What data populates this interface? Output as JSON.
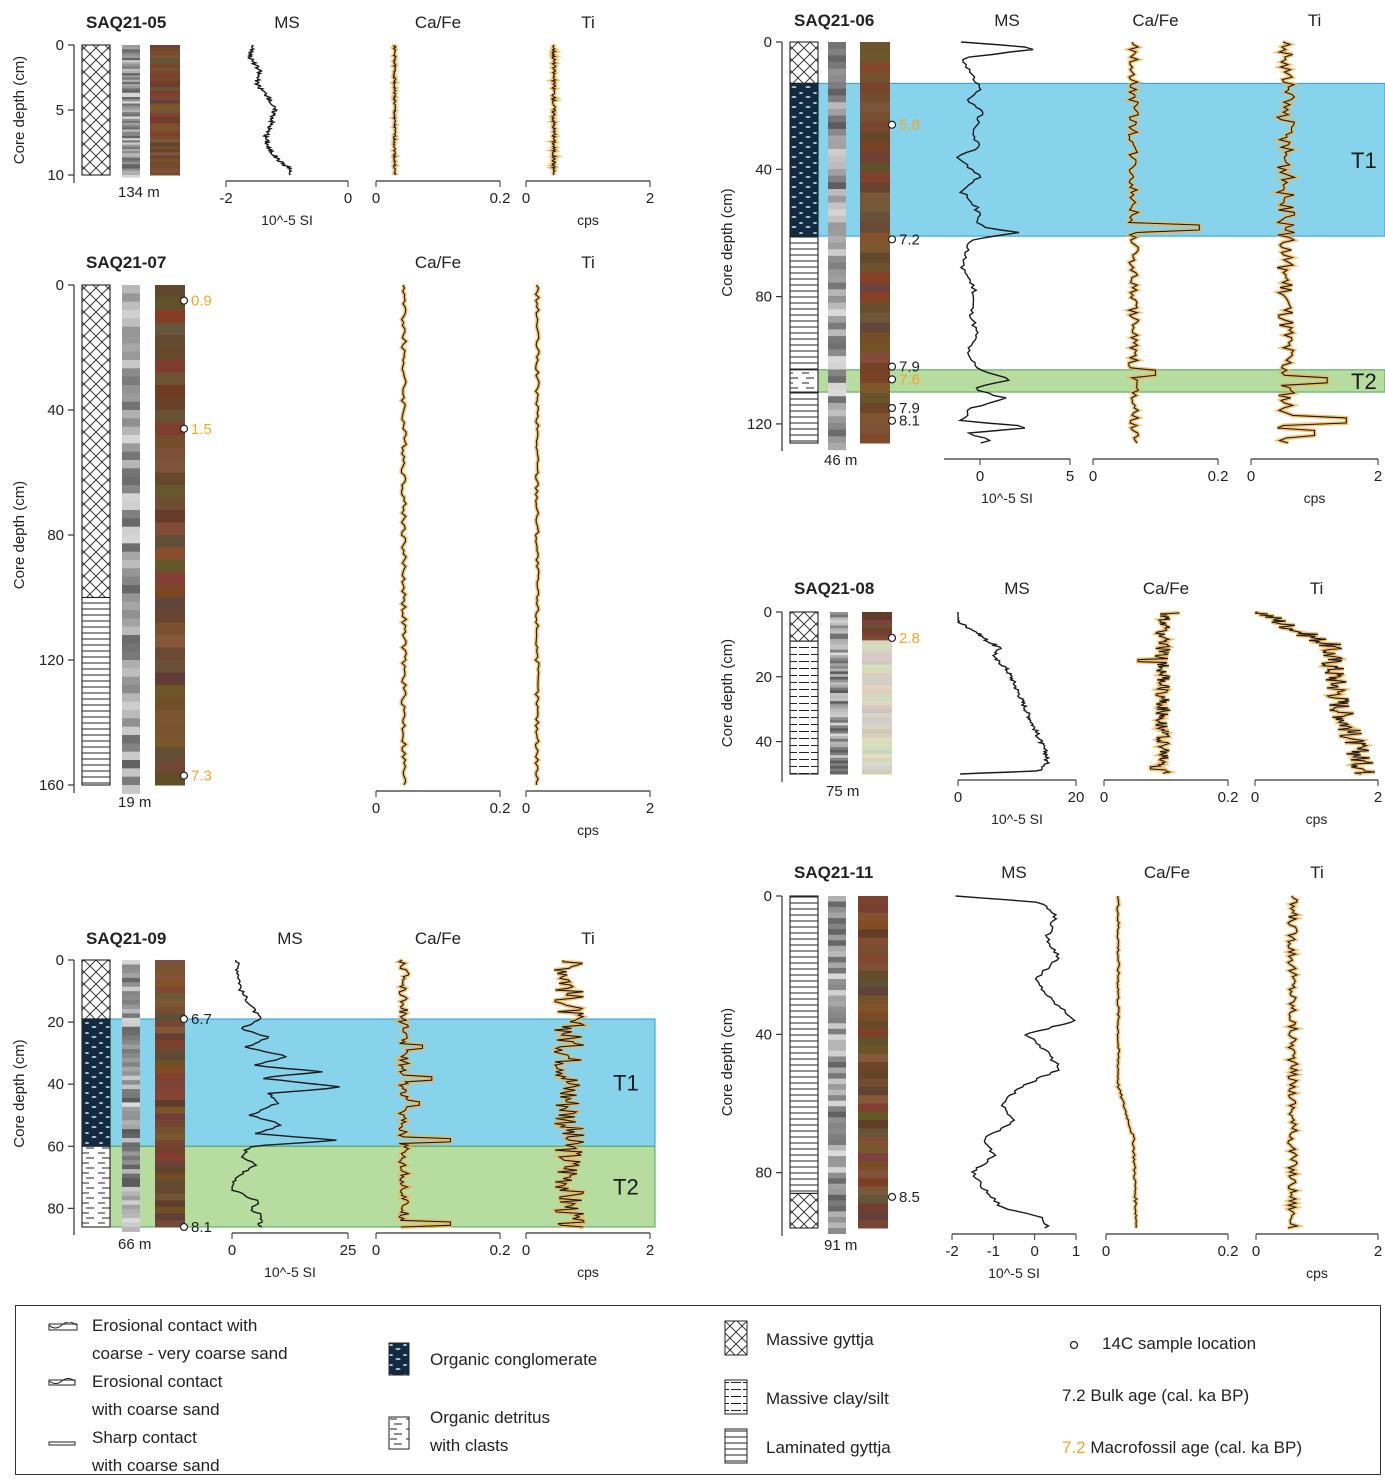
{
  "colors": {
    "t1": "#87d3ec",
    "t1_edge": "#2a9fd6",
    "t2": "#b6dca0",
    "t2_edge": "#4aa85a",
    "curve": "#1a1a1a",
    "halo": "#f5b44a",
    "macro_age": "#f5a623",
    "bulk_age": "#222222"
  },
  "depth_label": "Core depth (cm)",
  "chart_data": [
    {
      "type": "line",
      "core": "SAQ21-05",
      "elevation": "134 m",
      "depth_range": [
        0,
        10
      ],
      "depth_ticks": [
        0,
        5,
        10
      ],
      "headers": {
        "ms": "MS",
        "cafe": "Ca/Fe",
        "ti": "Ti"
      },
      "units": {
        "ms": "10^-5 SI",
        "ti": "cps"
      },
      "ms": {
        "range": [
          -2,
          0
        ],
        "ticks": [
          "-2",
          "0"
        ],
        "profile": [
          [
            0,
            -1.55
          ],
          [
            1,
            -1.6
          ],
          [
            2,
            -1.45
          ],
          [
            3,
            -1.5
          ],
          [
            4,
            -1.3
          ],
          [
            5,
            -1.2
          ],
          [
            6,
            -1.25
          ],
          [
            7,
            -1.35
          ],
          [
            8,
            -1.3
          ],
          [
            9,
            -1.1
          ],
          [
            9.5,
            -0.95
          ]
        ]
      },
      "cafe": {
        "range": [
          0,
          0.2
        ],
        "ticks": [
          "0",
          "0.2"
        ],
        "level": 0.03,
        "noise": 0.002
      },
      "ti": {
        "range": [
          0,
          2
        ],
        "ticks": [
          "0",
          "2"
        ],
        "level": 0.45,
        "noise": 0.03
      },
      "units_legend": [],
      "litho": [
        "massive_gyttja"
      ],
      "ages": [],
      "events": []
    },
    {
      "type": "line",
      "core": "SAQ21-07",
      "elevation": "19 m",
      "depth_range": [
        0,
        160
      ],
      "depth_ticks": [
        0,
        40,
        80,
        120,
        160
      ],
      "headers": {
        "ms": "",
        "cafe": "Ca/Fe",
        "ti": "Ti"
      },
      "units": {
        "ms": "",
        "ti": "cps"
      },
      "ms": null,
      "cafe": {
        "range": [
          0,
          0.2
        ],
        "ticks": [
          "0",
          "0.2"
        ],
        "level": 0.045,
        "noise": 0.004
      },
      "ti": {
        "range": [
          0,
          2
        ],
        "ticks": [
          "0",
          "2"
        ],
        "level": 0.18,
        "noise": 0.03
      },
      "litho_units": [
        {
          "type": "massive_gyttja",
          "top": 0,
          "bottom": 100
        },
        {
          "type": "laminated_gyttja",
          "top": 100,
          "bottom": 160
        }
      ],
      "ages": [
        {
          "depth": 5,
          "label": "0.9",
          "kind": "macro"
        },
        {
          "depth": 46,
          "label": "1.5",
          "kind": "macro"
        },
        {
          "depth": 157,
          "label": "7.3",
          "kind": "macro"
        }
      ],
      "events": []
    },
    {
      "type": "line",
      "core": "SAQ21-09",
      "elevation": "66 m",
      "depth_range": [
        0,
        86
      ],
      "depth_ticks": [
        0,
        20,
        40,
        60,
        80
      ],
      "headers": {
        "ms": "MS",
        "cafe": "Ca/Fe",
        "ti": "Ti"
      },
      "units": {
        "ms": "10^-5 SI",
        "ti": "cps"
      },
      "ms": {
        "range": [
          0,
          25
        ],
        "ticks": [
          "0",
          "25"
        ],
        "profile": [
          [
            0,
            1
          ],
          [
            10,
            2
          ],
          [
            19,
            6
          ],
          [
            22,
            2
          ],
          [
            25,
            8
          ],
          [
            28,
            3
          ],
          [
            31,
            12
          ],
          [
            34,
            5
          ],
          [
            36,
            20
          ],
          [
            38,
            6
          ],
          [
            41,
            24
          ],
          [
            43,
            8
          ],
          [
            46,
            10
          ],
          [
            50,
            4
          ],
          [
            53,
            11
          ],
          [
            56,
            5
          ],
          [
            58,
            23
          ],
          [
            60,
            4
          ],
          [
            63,
            2
          ],
          [
            66,
            5
          ],
          [
            70,
            1
          ],
          [
            74,
            0
          ],
          [
            78,
            6
          ],
          [
            80,
            4
          ],
          [
            82,
            6
          ]
        ]
      },
      "cafe": {
        "range": [
          0,
          0.2
        ],
        "ticks": [
          "0",
          "0.2"
        ],
        "level": 0.045,
        "noise": 0.008,
        "bumps": [
          [
            28,
            0.075
          ],
          [
            38,
            0.09
          ],
          [
            46,
            0.07
          ],
          [
            58,
            0.12
          ],
          [
            85,
            0.12
          ]
        ]
      },
      "ti": {
        "range": [
          0,
          2
        ],
        "ticks": [
          "0",
          "2"
        ],
        "level": 0.7,
        "noise": 0.25
      },
      "litho_units": [
        {
          "type": "massive_gyttja",
          "top": 0,
          "bottom": 19
        },
        {
          "type": "organic_conglomerate",
          "top": 19,
          "bottom": 60
        },
        {
          "type": "organic_detritus",
          "top": 60,
          "bottom": 86
        }
      ],
      "ages": [
        {
          "depth": 19,
          "label": "6.7",
          "kind": "bulk"
        },
        {
          "depth": 86,
          "label": "8.1",
          "kind": "bulk"
        }
      ],
      "events": [
        {
          "name": "T1",
          "top": 19,
          "bottom": 60
        },
        {
          "name": "T2",
          "top": 60,
          "bottom": 86
        }
      ]
    },
    {
      "type": "line",
      "core": "SAQ21-06",
      "elevation": "46 m",
      "depth_range": [
        0,
        126
      ],
      "depth_ticks": [
        0,
        40,
        80,
        120
      ],
      "headers": {
        "ms": "MS",
        "cafe": "Ca/Fe",
        "ti": "Ti"
      },
      "units": {
        "ms": "10^-5 SI",
        "ti": "cps"
      },
      "ms": {
        "range": [
          -2,
          5
        ],
        "ticks": [
          "0",
          "5"
        ],
        "tick_values": [
          0,
          5
        ],
        "profile": [
          [
            0,
            -1
          ],
          [
            2,
            3.5
          ],
          [
            5,
            -1
          ],
          [
            10,
            -0.5
          ],
          [
            15,
            0
          ],
          [
            18,
            -0.8
          ],
          [
            22,
            0.2
          ],
          [
            28,
            -0.5
          ],
          [
            33,
            0
          ],
          [
            36,
            -1.3
          ],
          [
            42,
            0
          ],
          [
            47,
            -1
          ],
          [
            52,
            -0.2
          ],
          [
            58,
            0
          ],
          [
            60,
            2.2
          ],
          [
            62,
            -0.5
          ],
          [
            70,
            -1
          ],
          [
            78,
            -0.3
          ],
          [
            85,
            -0.5
          ],
          [
            92,
            -0.2
          ],
          [
            98,
            -0.8
          ],
          [
            103,
            0
          ],
          [
            106,
            1.7
          ],
          [
            109,
            -0.5
          ],
          [
            112,
            1.5
          ],
          [
            115,
            -0.5
          ],
          [
            119,
            -1
          ],
          [
            121,
            3.2
          ],
          [
            123,
            -1
          ],
          [
            125,
            0.8
          ],
          [
            126,
            0
          ]
        ]
      },
      "cafe": {
        "range": [
          0,
          0.2
        ],
        "ticks": [
          "0",
          "0.2"
        ],
        "level": 0.065,
        "noise": 0.008,
        "bumps": [
          [
            58,
            0.17
          ],
          [
            104,
            0.1
          ],
          [
            108,
            0.07
          ]
        ]
      },
      "ti": {
        "range": [
          0,
          2
        ],
        "ticks": [
          "0",
          "2"
        ],
        "level": 0.55,
        "noise": 0.14,
        "bumps": [
          [
            106,
            1.2
          ],
          [
            119,
            1.5
          ],
          [
            123,
            1.0
          ]
        ]
      },
      "litho_units": [
        {
          "type": "massive_gyttja",
          "top": 0,
          "bottom": 13
        },
        {
          "type": "organic_conglomerate",
          "top": 13,
          "bottom": 61
        },
        {
          "type": "laminated_gyttja",
          "top": 61,
          "bottom": 103
        },
        {
          "type": "organic_detritus",
          "top": 103,
          "bottom": 110
        },
        {
          "type": "laminated_gyttja",
          "top": 110,
          "bottom": 126
        }
      ],
      "ages": [
        {
          "depth": 26,
          "label": "5.8",
          "kind": "macro"
        },
        {
          "depth": 62,
          "label": "7.2",
          "kind": "bulk"
        },
        {
          "depth": 102,
          "label": "7.9",
          "kind": "bulk"
        },
        {
          "depth": 106,
          "label": "7.6",
          "kind": "macro"
        },
        {
          "depth": 115,
          "label": "7.9",
          "kind": "bulk"
        },
        {
          "depth": 119,
          "label": "8.1",
          "kind": "bulk"
        }
      ],
      "events": [
        {
          "name": "T1",
          "top": 13,
          "bottom": 61
        },
        {
          "name": "T2",
          "top": 103,
          "bottom": 110
        }
      ]
    },
    {
      "type": "line",
      "core": "SAQ21-08",
      "elevation": "75 m",
      "depth_range": [
        0,
        50
      ],
      "depth_ticks": [
        0,
        20,
        40
      ],
      "headers": {
        "ms": "MS",
        "cafe": "Ca/Fe",
        "ti": "Ti"
      },
      "units": {
        "ms": "10^-5 SI",
        "ti": "cps"
      },
      "ms": {
        "range": [
          0,
          20
        ],
        "ticks": [
          "0",
          "20"
        ],
        "profile": [
          [
            0,
            -0.5
          ],
          [
            3,
            0
          ],
          [
            6,
            3
          ],
          [
            9,
            5
          ],
          [
            11,
            7
          ],
          [
            14,
            6
          ],
          [
            17,
            8
          ],
          [
            20,
            9
          ],
          [
            24,
            10
          ],
          [
            28,
            11
          ],
          [
            32,
            12
          ],
          [
            36,
            13
          ],
          [
            40,
            14
          ],
          [
            44,
            15
          ],
          [
            47,
            15
          ],
          [
            49,
            14
          ],
          [
            50,
            0.5
          ]
        ]
      },
      "cafe": {
        "range": [
          0,
          0.2
        ],
        "ticks": [
          "0",
          "0.2"
        ],
        "level": 0.095,
        "noise": 0.012,
        "bumps": [
          [
            15,
            0.055
          ],
          [
            0,
            0.12
          ],
          [
            48,
            0.075
          ]
        ]
      },
      "ti": {
        "range": [
          0,
          2
        ],
        "ticks": [
          "0",
          "2"
        ],
        "level": 1.3,
        "noise": 0.2,
        "trend": [
          [
            0,
            0.1
          ],
          [
            5,
            0.6
          ],
          [
            10,
            1.2
          ],
          [
            30,
            1.4
          ],
          [
            45,
            1.7
          ],
          [
            50,
            1.8
          ]
        ]
      },
      "litho_units": [
        {
          "type": "massive_gyttja",
          "top": 0,
          "bottom": 9
        },
        {
          "type": "massive_clay_silt",
          "top": 9,
          "bottom": 50
        }
      ],
      "ages": [
        {
          "depth": 8,
          "label": "2.8",
          "kind": "macro"
        }
      ],
      "events": []
    },
    {
      "type": "line",
      "core": "SAQ21-11",
      "elevation": "91 m",
      "depth_range": [
        0,
        96
      ],
      "depth_ticks": [
        0,
        40,
        80
      ],
      "headers": {
        "ms": "MS",
        "cafe": "Ca/Fe",
        "ti": "Ti"
      },
      "units": {
        "ms": "10^-5 SI",
        "ti": "cps"
      },
      "ms": {
        "range": [
          -2,
          1
        ],
        "ticks": [
          "-2",
          "-1",
          "0",
          "1"
        ],
        "profile": [
          [
            0,
            -1.9
          ],
          [
            2,
            0.2
          ],
          [
            6,
            0.5
          ],
          [
            12,
            0.3
          ],
          [
            18,
            0.6
          ],
          [
            24,
            0
          ],
          [
            30,
            0.4
          ],
          [
            36,
            1
          ],
          [
            40,
            -0.2
          ],
          [
            45,
            0.3
          ],
          [
            50,
            0.6
          ],
          [
            55,
            -0.3
          ],
          [
            60,
            -0.8
          ],
          [
            65,
            -0.5
          ],
          [
            70,
            -1.2
          ],
          [
            75,
            -1
          ],
          [
            80,
            -1.5
          ],
          [
            85,
            -1.2
          ],
          [
            90,
            -0.8
          ],
          [
            93,
            0.2
          ],
          [
            96,
            0.3
          ]
        ]
      },
      "cafe": {
        "range": [
          0,
          0.2
        ],
        "ticks": [
          "0",
          "0.2"
        ],
        "level": 0.02,
        "noise": 0.002,
        "trend": [
          [
            0,
            0.02
          ],
          [
            55,
            0.02
          ],
          [
            70,
            0.045
          ],
          [
            96,
            0.05
          ]
        ]
      },
      "ti": {
        "range": [
          0,
          2
        ],
        "ticks": [
          "0",
          "2"
        ],
        "level": 0.6,
        "noise": 0.08
      },
      "litho_units": [
        {
          "type": "laminated_gyttja",
          "top": 0,
          "bottom": 86
        },
        {
          "type": "massive_gyttja",
          "top": 86,
          "bottom": 96
        }
      ],
      "ages": [
        {
          "depth": 87,
          "label": "8.5",
          "kind": "bulk"
        }
      ],
      "events": []
    }
  ],
  "legend": {
    "erosional_coarse": [
      "Erosional contact with",
      "coarse - very coarse sand"
    ],
    "erosional_sand": [
      "Erosional contact",
      "with coarse sand"
    ],
    "sharp": [
      "Sharp contact",
      "with coarse sand"
    ],
    "conglomerate": "Organic conglomerate",
    "detritus": [
      "Organic detritus",
      "with clasts"
    ],
    "massive_gyttja": "Massive gyttja",
    "massive_clay": "Massive clay/silt",
    "laminated": "Laminated gyttja",
    "sample": "14C sample location",
    "bulk_num": "7.2",
    "bulk": "Bulk age (cal. ka BP)",
    "macro_num": "7.2",
    "macro": "Macrofossil age (cal. ka BP)"
  }
}
